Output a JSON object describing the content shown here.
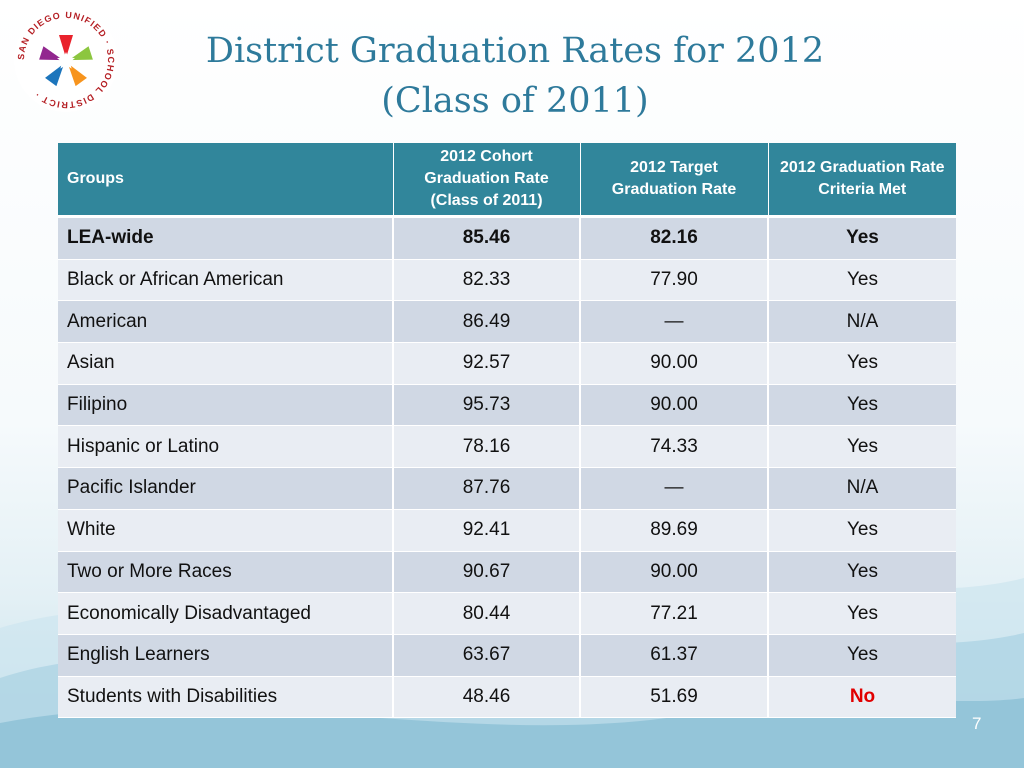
{
  "slide": {
    "title_line1": "District Graduation Rates for 2012",
    "title_line2": "(Class of 2011)",
    "page_number": "7",
    "logo_text": "SAN DIEGO UNIFIED · SCHOOL DISTRICT ·"
  },
  "table": {
    "headers": [
      "Groups",
      "2012 Cohort Graduation Rate (Class of 2011)",
      "2012 Target Graduation Rate",
      "2012 Graduation Rate Criteria Met"
    ],
    "rows": [
      {
        "group": "LEA-wide",
        "cohort": "85.46",
        "target": "82.16",
        "met": "Yes"
      },
      {
        "group": "Black or African American",
        "cohort": "82.33",
        "target": "77.90",
        "met": "Yes"
      },
      {
        "group": "American",
        "cohort": "86.49",
        "target": "—",
        "met": "N/A"
      },
      {
        "group": "Asian",
        "cohort": "92.57",
        "target": "90.00",
        "met": "Yes"
      },
      {
        "group": "Filipino",
        "cohort": "95.73",
        "target": "90.00",
        "met": "Yes"
      },
      {
        "group": "Hispanic or Latino",
        "cohort": "78.16",
        "target": "74.33",
        "met": "Yes"
      },
      {
        "group": "Pacific Islander",
        "cohort": "87.76",
        "target": "—",
        "met": "N/A"
      },
      {
        "group": "White",
        "cohort": "92.41",
        "target": "89.69",
        "met": "Yes"
      },
      {
        "group": "Two or More Races",
        "cohort": "90.67",
        "target": "90.00",
        "met": "Yes"
      },
      {
        "group": "Economically Disadvantaged",
        "cohort": "80.44",
        "target": "77.21",
        "met": "Yes"
      },
      {
        "group": "English Learners",
        "cohort": "63.67",
        "target": "61.37",
        "met": "Yes"
      },
      {
        "group": "Students with Disabilities",
        "cohort": "48.46",
        "target": "51.69",
        "met": "No"
      }
    ]
  },
  "colors": {
    "title": "#2e7a9b",
    "header_bg": "#31869b",
    "row_odd": "#d0d8e4",
    "row_even": "#e9edf3",
    "not_met": "#e10000"
  }
}
